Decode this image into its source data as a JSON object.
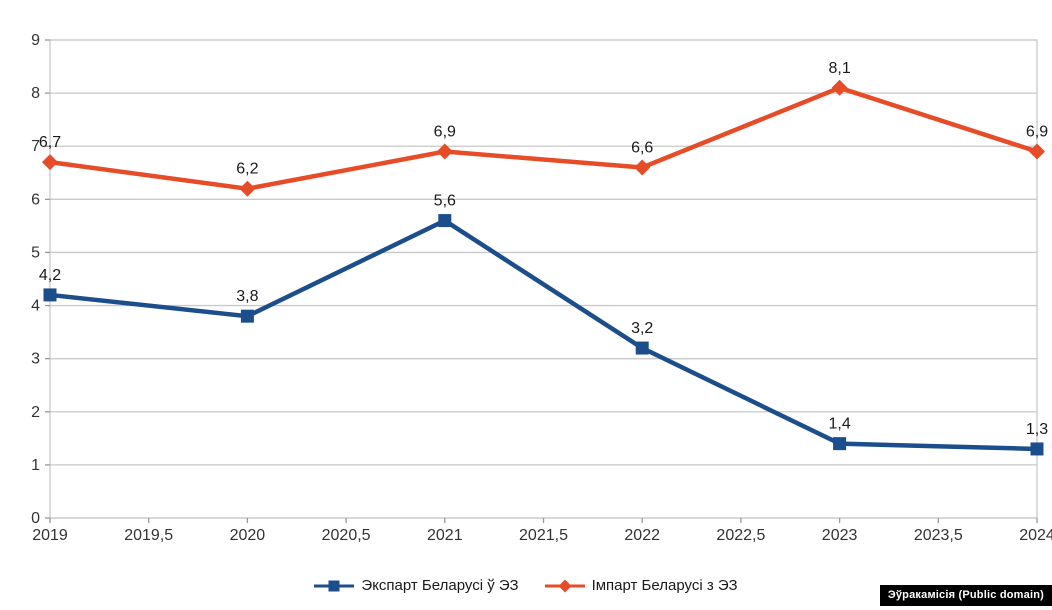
{
  "watermark": {
    "text": "Эўракамісія (Public domain)"
  },
  "chart_data": {
    "type": "line",
    "title": "",
    "xlabel": "",
    "ylabel": "",
    "x": [
      2019,
      2020,
      2021,
      2022,
      2023,
      2024
    ],
    "xlim": [
      2019,
      2024
    ],
    "ylim": [
      0,
      9
    ],
    "grid": true,
    "legend_position": "bottom",
    "x_tick_labels": [
      "2019",
      "2019,5",
      "2020",
      "2020,5",
      "2021",
      "2021,5",
      "2022",
      "2022,5",
      "2023",
      "2023,5",
      "2024"
    ],
    "y_tick_labels": [
      "0",
      "1",
      "2",
      "3",
      "4",
      "5",
      "6",
      "7",
      "8",
      "9"
    ],
    "series": [
      {
        "name": "Экспарт Беларусі ў ЭЗ",
        "marker": "square",
        "color": "#1C4E8C",
        "values": [
          4.2,
          3.8,
          5.6,
          3.2,
          1.4,
          1.3
        ],
        "point_labels": [
          "4,2",
          "3,8",
          "5,6",
          "3,2",
          "1,4",
          "1,3"
        ]
      },
      {
        "name": "Імпарт Беларусі з ЭЗ",
        "marker": "diamond",
        "color": "#E64C28",
        "values": [
          6.7,
          6.2,
          6.9,
          6.6,
          8.1,
          6.9
        ],
        "point_labels": [
          "6,7",
          "6,2",
          "6,9",
          "6,6",
          "8,1",
          "6,9"
        ]
      }
    ],
    "style": {
      "grid_color": "#C9C9C9",
      "tick_color": "#999999",
      "axis_text_color": "#333333",
      "point_label_color": "#1A1A1A"
    }
  }
}
